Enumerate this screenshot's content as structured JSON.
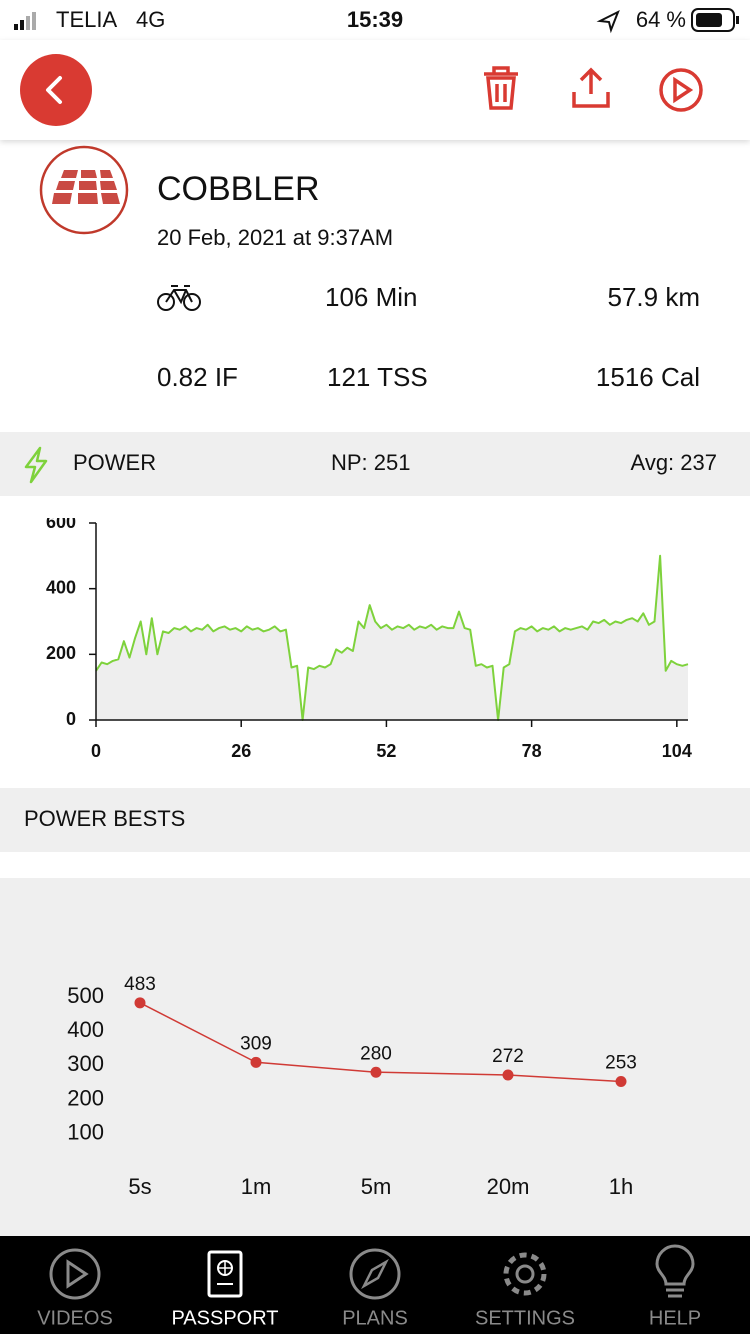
{
  "status_bar": {
    "carrier": "TELIA",
    "network": "4G",
    "time": "15:39",
    "battery": "64 %"
  },
  "workout": {
    "name": "COBBLER",
    "date": "20 Feb, 2021 at 9:37AM",
    "duration": "106 Min",
    "distance": "57.9 km",
    "intensity": "0.82 IF",
    "tss": "121 TSS",
    "calories": "1516 Cal"
  },
  "power_section": {
    "title": "POWER",
    "np": "NP: 251",
    "avg": "Avg: 237"
  },
  "power_chart": {
    "type": "area",
    "color": "#7ed23c",
    "fill": "#eeeeee",
    "xlim": [
      0,
      106
    ],
    "xticks": [
      0,
      26,
      52,
      78,
      104
    ],
    "ylim": [
      0,
      600
    ],
    "yticks": [
      0,
      200,
      400,
      600
    ],
    "x": [
      0,
      1,
      2,
      3,
      4,
      5,
      6,
      7,
      8,
      9,
      10,
      11,
      12,
      13,
      14,
      15,
      16,
      17,
      18,
      19,
      20,
      21,
      22,
      23,
      24,
      25,
      26,
      27,
      28,
      29,
      30,
      31,
      32,
      33,
      34,
      35,
      36,
      37,
      38,
      39,
      40,
      41,
      42,
      43,
      44,
      45,
      46,
      47,
      48,
      49,
      50,
      51,
      52,
      53,
      54,
      55,
      56,
      57,
      58,
      59,
      60,
      61,
      62,
      63,
      64,
      65,
      66,
      67,
      68,
      69,
      70,
      71,
      72,
      73,
      74,
      75,
      76,
      77,
      78,
      79,
      80,
      81,
      82,
      83,
      84,
      85,
      86,
      87,
      88,
      89,
      90,
      91,
      92,
      93,
      94,
      95,
      96,
      97,
      98,
      99,
      100,
      101,
      102,
      103,
      104,
      105,
      106
    ],
    "values": [
      150,
      175,
      170,
      180,
      185,
      240,
      190,
      250,
      300,
      200,
      310,
      200,
      270,
      265,
      280,
      275,
      285,
      270,
      280,
      275,
      290,
      270,
      280,
      285,
      275,
      280,
      270,
      285,
      275,
      280,
      270,
      275,
      285,
      270,
      275,
      160,
      165,
      0,
      160,
      155,
      165,
      160,
      170,
      215,
      205,
      220,
      210,
      300,
      280,
      350,
      300,
      280,
      290,
      275,
      285,
      280,
      290,
      275,
      285,
      280,
      290,
      275,
      285,
      280,
      280,
      330,
      280,
      275,
      165,
      170,
      160,
      165,
      0,
      160,
      170,
      270,
      280,
      275,
      285,
      270,
      280,
      275,
      285,
      270,
      280,
      275,
      280,
      285,
      275,
      300,
      295,
      305,
      290,
      300,
      295,
      305,
      310,
      300,
      325,
      290,
      300,
      500,
      150,
      180,
      170,
      165,
      170
    ]
  },
  "power_bests_section": {
    "title": "POWER BESTS"
  },
  "power_bests_chart": {
    "type": "line",
    "color": "#d03a35",
    "categories": [
      "5s",
      "1m",
      "5m",
      "20m",
      "1h"
    ],
    "values": [
      483,
      309,
      280,
      272,
      253
    ],
    "ylim": [
      0,
      500
    ],
    "yticks": [
      100,
      200,
      300,
      400,
      500
    ]
  },
  "tab_bar": {
    "items": [
      "VIDEOS",
      "PASSPORT",
      "PLANS",
      "SETTINGS",
      "HELP"
    ],
    "active": 1
  }
}
